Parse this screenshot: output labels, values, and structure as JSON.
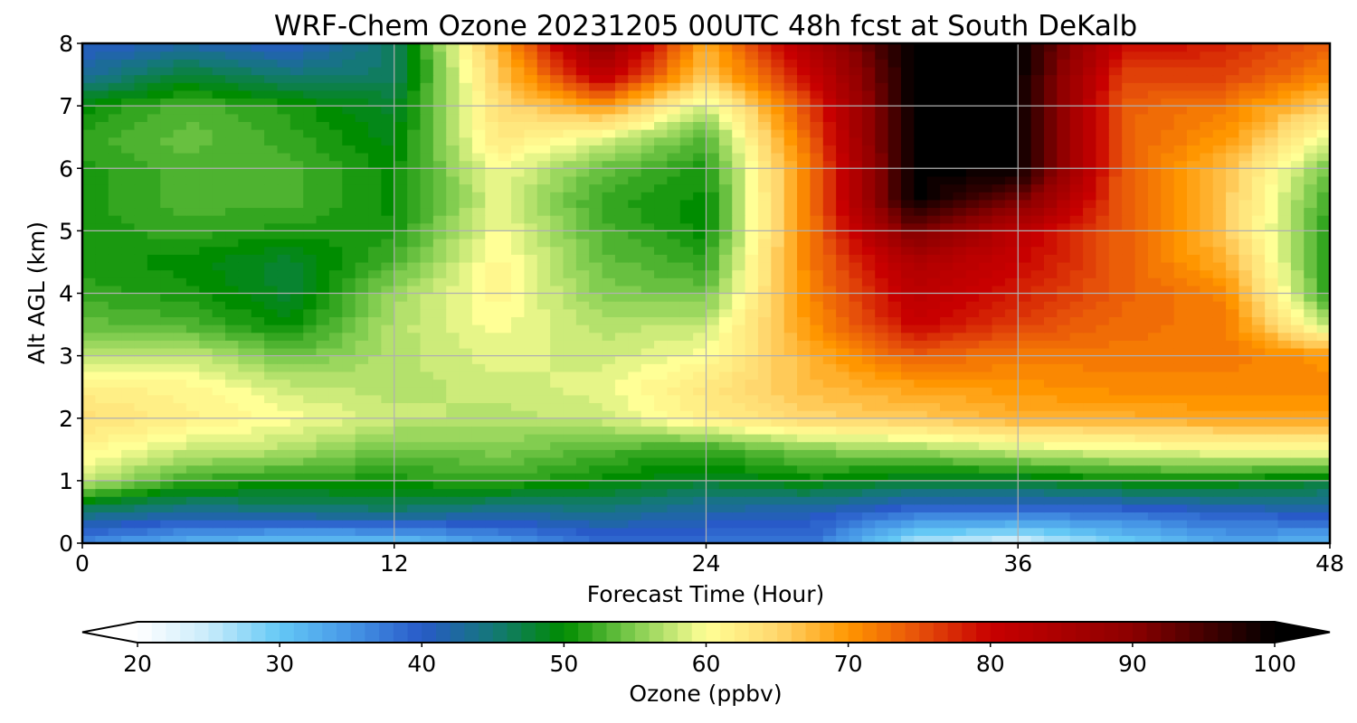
{
  "chart_data": {
    "type": "heatmap",
    "title": "WRF-Chem Ozone  20231205 00UTC 48h fcst at South DeKalb",
    "xlabel": "Forecast Time (Hour)",
    "ylabel": "Alt AGL (km)",
    "xlim": [
      0,
      48
    ],
    "ylim": [
      0,
      8
    ],
    "x_ticks": [
      "0",
      "12",
      "24",
      "36",
      "48"
    ],
    "y_ticks": [
      "0",
      "1",
      "2",
      "3",
      "4",
      "5",
      "6",
      "7",
      "8"
    ],
    "grid": true,
    "colorbar": {
      "label": "Ozone  (ppbv)",
      "range": [
        20,
        100
      ],
      "ticks": [
        "20",
        "30",
        "40",
        "50",
        "60",
        "70",
        "80",
        "90",
        "100"
      ],
      "extend": "both",
      "orientation": "horizontal"
    },
    "x": [
      0,
      4,
      8,
      12,
      16,
      20,
      24,
      28,
      32,
      36,
      40,
      44,
      48
    ],
    "y": [
      0,
      0.5,
      1,
      1.5,
      2,
      2.5,
      3,
      3.5,
      4,
      4.5,
      5,
      5.5,
      6,
      6.5,
      7,
      7.5,
      8
    ],
    "z": [
      [
        36,
        32,
        30,
        30,
        34,
        38,
        38,
        38,
        26,
        23,
        29,
        33,
        32
      ],
      [
        45,
        43,
        44,
        45,
        43,
        44,
        42,
        41,
        38,
        38,
        38,
        40,
        41
      ],
      [
        58,
        52,
        51,
        51,
        52,
        50,
        48,
        50,
        48,
        48,
        50,
        50,
        48
      ],
      [
        61,
        58,
        57,
        54,
        55,
        53,
        52,
        55,
        56,
        58,
        59,
        60,
        60
      ],
      [
        64,
        62,
        60,
        58,
        57,
        58,
        62,
        65,
        66,
        68,
        68,
        69,
        69
      ],
      [
        62,
        61,
        58,
        57,
        58,
        59,
        63,
        67,
        69,
        70,
        71,
        71,
        71
      ],
      [
        58,
        58,
        54,
        57,
        59,
        58,
        60,
        68,
        74,
        72,
        72,
        72,
        70
      ],
      [
        54,
        53,
        50,
        57,
        60,
        57,
        58,
        70,
        80,
        76,
        73,
        72,
        57
      ],
      [
        52,
        51,
        48,
        56,
        61,
        55,
        54,
        71,
        82,
        78,
        74,
        71,
        51
      ],
      [
        51,
        50,
        48,
        53,
        61,
        54,
        52,
        72,
        84,
        80,
        74,
        68,
        51
      ],
      [
        51,
        52,
        51,
        51,
        60,
        53,
        50,
        72,
        92,
        82,
        74,
        66,
        51
      ],
      [
        51,
        53,
        53,
        50,
        59,
        52,
        50,
        72,
        100,
        92,
        74,
        66,
        52
      ],
      [
        51,
        53,
        53,
        50,
        60,
        54,
        51,
        72,
        100,
        100,
        74,
        67,
        54
      ],
      [
        52,
        54,
        52,
        49,
        63,
        59,
        53,
        74,
        100,
        100,
        74,
        70,
        59
      ],
      [
        50,
        53,
        51,
        48,
        64,
        70,
        58,
        76,
        100,
        100,
        74,
        72,
        65
      ],
      [
        43,
        48,
        45,
        46,
        66,
        82,
        66,
        80,
        100,
        100,
        76,
        76,
        71
      ],
      [
        40,
        42,
        40,
        46,
        68,
        90,
        68,
        84,
        100,
        100,
        80,
        78,
        74
      ]
    ]
  }
}
